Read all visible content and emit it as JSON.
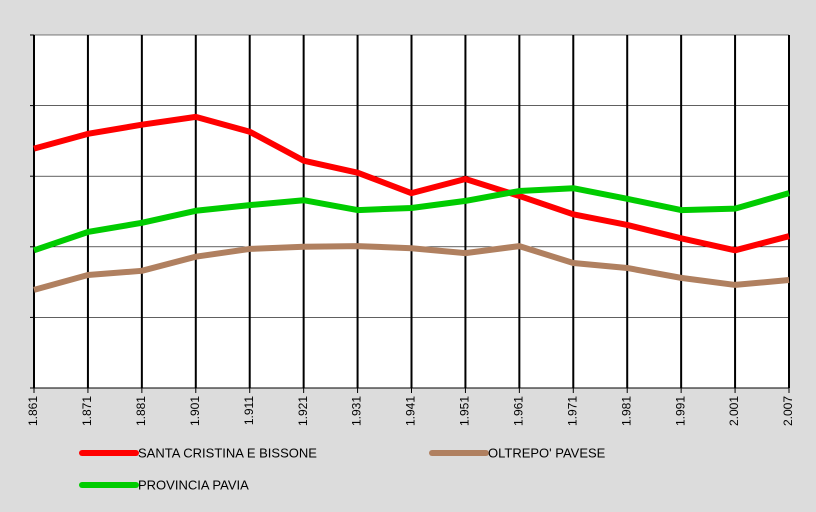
{
  "chart_data": {
    "type": "line",
    "categories": [
      "1.861",
      "1.871",
      "1.881",
      "1.901",
      "1.911",
      "1.921",
      "1.931",
      "1.941",
      "1.951",
      "1.961",
      "1.971",
      "1.981",
      "1.991",
      "2.001",
      "2.007"
    ],
    "series": [
      {
        "name": "SANTA CRISTINA E BISSONE",
        "color": "#ff0000",
        "values": [
          3.39,
          3.6,
          3.73,
          3.84,
          3.63,
          3.22,
          3.05,
          2.76,
          2.96,
          2.72,
          2.46,
          2.31,
          2.12,
          1.95,
          2.15
        ]
      },
      {
        "name": "OLTREPO' PAVESE",
        "color": "#b08060",
        "values": [
          1.39,
          1.6,
          1.66,
          1.86,
          1.97,
          2.0,
          2.01,
          1.98,
          1.91,
          2.01,
          1.77,
          1.7,
          1.56,
          1.46,
          1.53
        ]
      },
      {
        "name": "PROVINCIA PAVIA",
        "color": "#00cc00",
        "values": [
          1.95,
          2.21,
          2.34,
          2.51,
          2.59,
          2.66,
          2.52,
          2.55,
          2.65,
          2.79,
          2.83,
          2.68,
          2.52,
          2.54,
          2.76
        ]
      }
    ],
    "ylim": [
      0,
      5
    ],
    "yticks": [
      0,
      1,
      2,
      3,
      4,
      5
    ],
    "grid": true
  }
}
